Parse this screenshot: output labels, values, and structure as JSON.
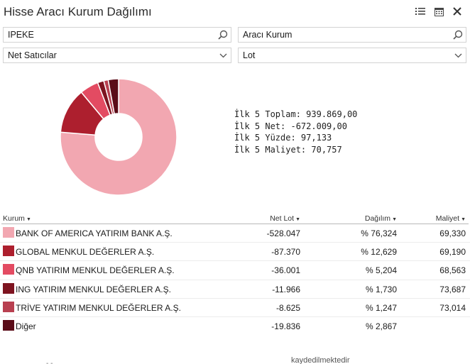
{
  "window": {
    "title": "Hisse Aracı Kurum Dağılımı",
    "icons": [
      "list-icon",
      "calendar-icon",
      "close-icon"
    ]
  },
  "filters": {
    "stock_value": "IPEKE",
    "broker_value": "Aracı Kurum",
    "direction_value": "Net Satıcılar",
    "unit_value": "Lot"
  },
  "summary": {
    "line1": "İlk 5 Toplam: 939.869,00",
    "line2": "İlk 5 Net: -672.009,00",
    "line3": "İlk 5 Yüzde: 97,133",
    "line4": "İlk 5 Maliyet: 70,757"
  },
  "table": {
    "headers": {
      "kurum": "Kurum",
      "net_lot": "Net Lot",
      "dagilim": "Dağılım",
      "maliyet": "Maliyet"
    },
    "rows": [
      {
        "kurum": "BANK OF AMERICA YATIRIM BANK A.Ş.",
        "net_lot": "-528.047",
        "dagilim": "% 76,324",
        "maliyet": "69,330",
        "color": "#f2a7b1"
      },
      {
        "kurum": "GLOBAL MENKUL DEĞERLER A.Ş.",
        "net_lot": "-87.370",
        "dagilim": "% 12,629",
        "maliyet": "69,190",
        "color": "#ad1f2e"
      },
      {
        "kurum": "QNB YATIRIM MENKUL DEĞERLER A.Ş.",
        "net_lot": "-36.001",
        "dagilim": "% 5,204",
        "maliyet": "68,563",
        "color": "#e34b62"
      },
      {
        "kurum": "ING YATIRIM MENKUL DEĞERLER A.Ş.",
        "net_lot": "-11.966",
        "dagilim": "% 1,730",
        "maliyet": "73,687",
        "color": "#7e1420"
      },
      {
        "kurum": "TRİVE YATIRIM MENKUL DEĞERLER A.Ş.",
        "net_lot": "-8.625",
        "dagilim": "% 1,247",
        "maliyet": "73,014",
        "color": "#b84050"
      },
      {
        "kurum": "Diğer",
        "net_lot": "-19.836",
        "dagilim": "% 2,867",
        "maliyet": "",
        "color": "#5a0c18"
      }
    ]
  },
  "chart_data": {
    "type": "pie",
    "variant": "donut",
    "categories": [
      "BANK OF AMERICA YATIRIM BANK A.Ş.",
      "GLOBAL MENKUL DEĞERLER A.Ş.",
      "QNB YATIRIM MENKUL DEĞERLER A.Ş.",
      "ING YATIRIM MENKUL DEĞERLER A.Ş.",
      "TRİVE YATIRIM MENKUL DEĞERLER A.Ş.",
      "Diğer"
    ],
    "values": [
      76.324,
      12.629,
      5.204,
      1.73,
      1.247,
      2.867
    ],
    "colors": [
      "#f2a7b1",
      "#ad1f2e",
      "#e34b62",
      "#7e1420",
      "#b84050",
      "#5a0c18"
    ],
    "title": "",
    "legend": "none"
  },
  "footer": {
    "cut_text": "kaydedilmektedir",
    "cut_dash": "- -"
  }
}
